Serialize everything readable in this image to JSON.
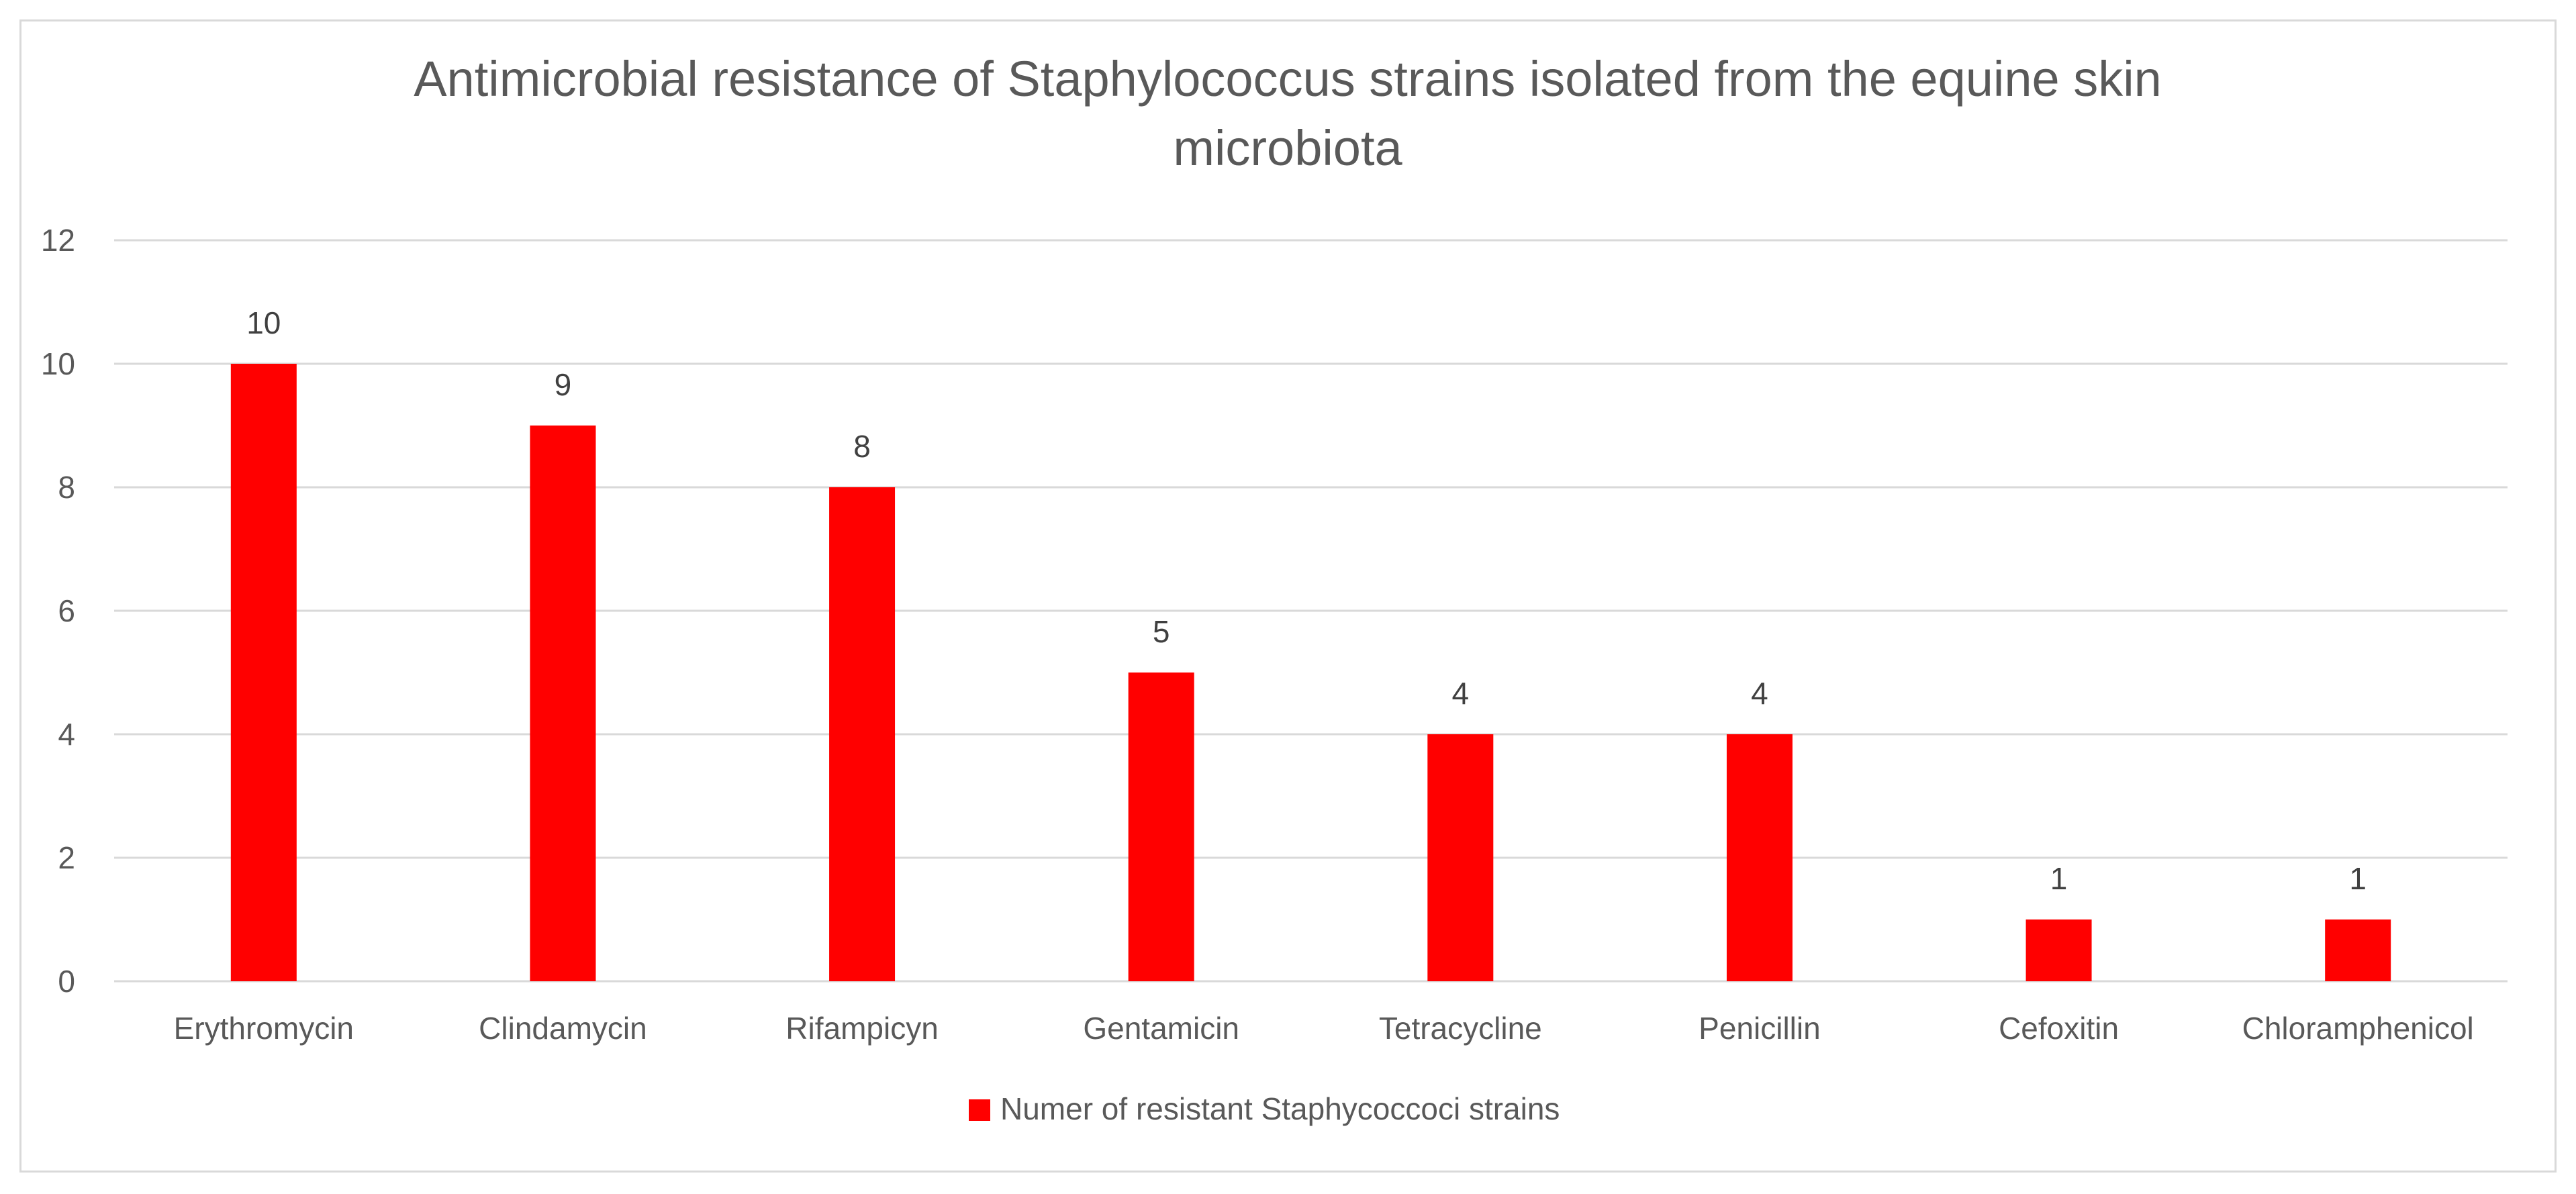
{
  "chart_data": {
    "type": "bar",
    "title_lines": [
      "Antimicrobial resistance of Staphylococcus strains isolated from the equine skin",
      "microbiota"
    ],
    "categories": [
      "Erythromycin",
      "Clindamycin",
      "Rifampicyn",
      "Gentamicin",
      "Tetracycline",
      "Penicillin",
      "Cefoxitin",
      "Chloramphenicol"
    ],
    "series": [
      {
        "name": "Numer of resistant Staphycoccoci strains",
        "values": [
          10,
          9,
          8,
          5,
          4,
          4,
          1,
          1
        ],
        "color": "#ff0000"
      }
    ],
    "ylim": [
      0,
      12
    ],
    "yticks": [
      0,
      2,
      4,
      6,
      8,
      10,
      12
    ],
    "grid": true,
    "data_labels": true,
    "legend_position": "bottom"
  }
}
